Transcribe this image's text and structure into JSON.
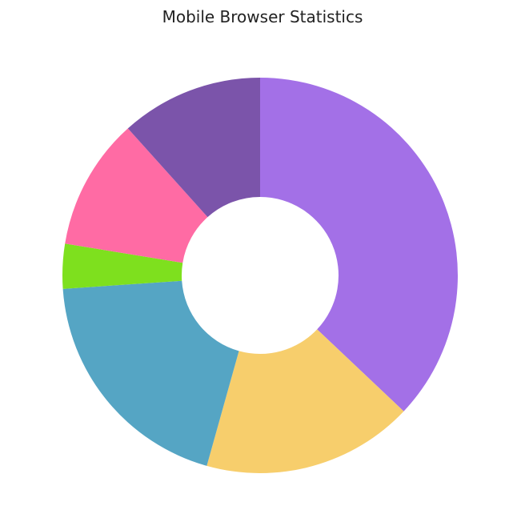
{
  "chart_data": {
    "type": "pie",
    "title": "Mobile Browser Statistics",
    "donut": true,
    "legend": "none",
    "data_labels": false,
    "slices": [
      {
        "value": 37.5,
        "color": "#a370e7"
      },
      {
        "value": 17.5,
        "color": "#f7ce6c"
      },
      {
        "value": 19.8,
        "color": "#55a5c4"
      },
      {
        "value": 3.7,
        "color": "#7ee01e"
      },
      {
        "value": 10.9,
        "color": "#ff6ba4"
      },
      {
        "value": 11.8,
        "color": "#7b54aa"
      }
    ]
  }
}
